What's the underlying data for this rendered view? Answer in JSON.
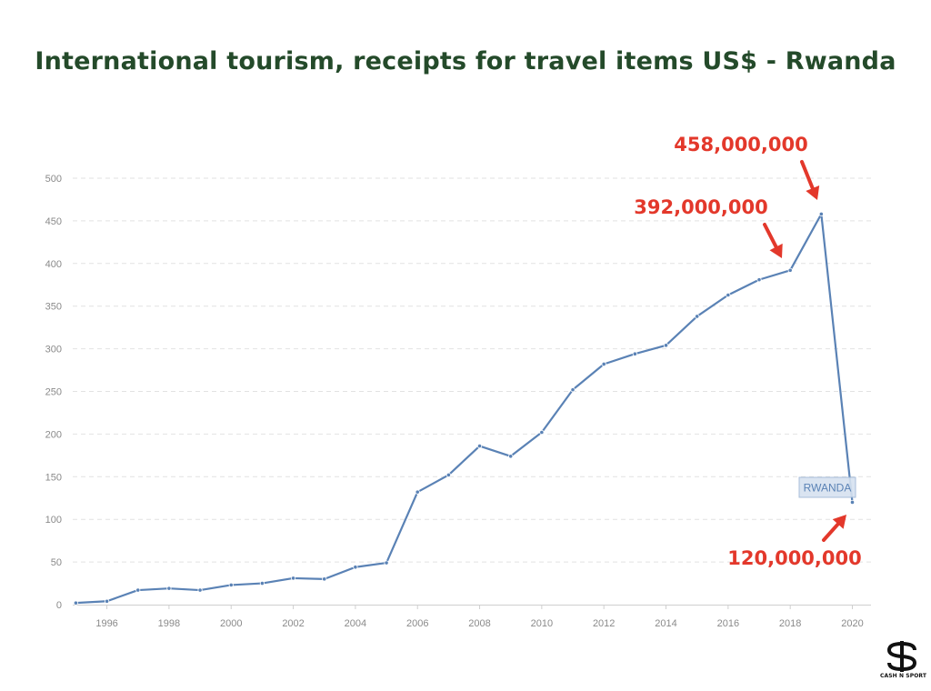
{
  "chart_data": {
    "type": "line",
    "title": "International tourism, receipts for travel items US$ - Rwanda",
    "xlabel": "",
    "ylabel": "",
    "x": [
      1995,
      1996,
      1997,
      1998,
      1999,
      2000,
      2001,
      2002,
      2003,
      2004,
      2005,
      2006,
      2007,
      2008,
      2009,
      2010,
      2011,
      2012,
      2013,
      2014,
      2015,
      2016,
      2017,
      2018,
      2019,
      2020
    ],
    "series": [
      {
        "name": "RWANDA",
        "values": [
          2,
          4,
          17,
          19,
          17,
          23,
          25,
          31,
          30,
          44,
          49,
          132,
          152,
          186,
          174,
          202,
          252,
          282,
          294,
          304,
          338,
          363,
          381,
          392,
          458,
          120
        ],
        "color": "#5a82b5"
      }
    ],
    "xticks": [
      "1996",
      "1998",
      "2000",
      "2002",
      "2004",
      "2006",
      "2008",
      "2010",
      "2012",
      "2014",
      "2016",
      "2018",
      "2020"
    ],
    "yticks": [
      "0",
      "50",
      "100",
      "150",
      "200",
      "250",
      "300",
      "350",
      "400",
      "450",
      "500"
    ],
    "xlim": [
      1994.9,
      2020.6
    ],
    "ylim": [
      0,
      500
    ],
    "grid": true,
    "annotations": [
      {
        "text": "458,000,000",
        "x": 2019,
        "y": 458
      },
      {
        "text": "392,000,000",
        "x": 2018,
        "y": 392
      },
      {
        "text": "120,000,000",
        "x": 2020,
        "y": 120
      }
    ],
    "annotation_color": "#e3382b"
  },
  "logo": {
    "text": "CASH N SPORT"
  }
}
